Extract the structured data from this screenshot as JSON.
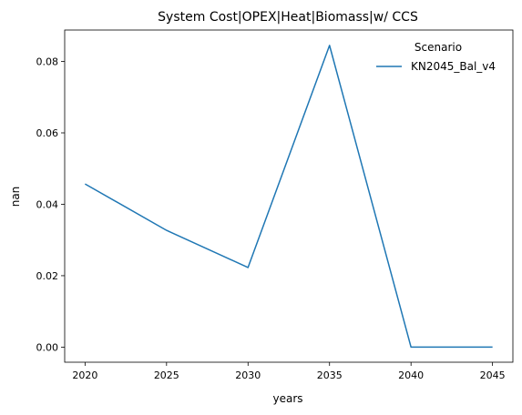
{
  "chart_data": {
    "type": "line",
    "title": "System Cost|OPEX|Heat|Biomass|w/ CCS",
    "xlabel": "years",
    "ylabel": "nan",
    "x": [
      2020,
      2025,
      2030,
      2035,
      2040,
      2045
    ],
    "xticks": [
      "2020",
      "2025",
      "2030",
      "2035",
      "2040",
      "2045"
    ],
    "yticks": [
      "0.00",
      "0.02",
      "0.04",
      "0.06",
      "0.08"
    ],
    "ylim": [
      -0.00423,
      0.0888
    ],
    "xlim": [
      2018.75,
      2046.25
    ],
    "grid": false,
    "legend": {
      "title": "Scenario",
      "placement": "top-right"
    },
    "series": [
      {
        "name": "KN2045_Bal_v4",
        "color": "#1f77b4",
        "values": [
          0.0457,
          0.0327,
          0.0223,
          0.0845,
          0.0,
          0.0
        ]
      }
    ]
  }
}
